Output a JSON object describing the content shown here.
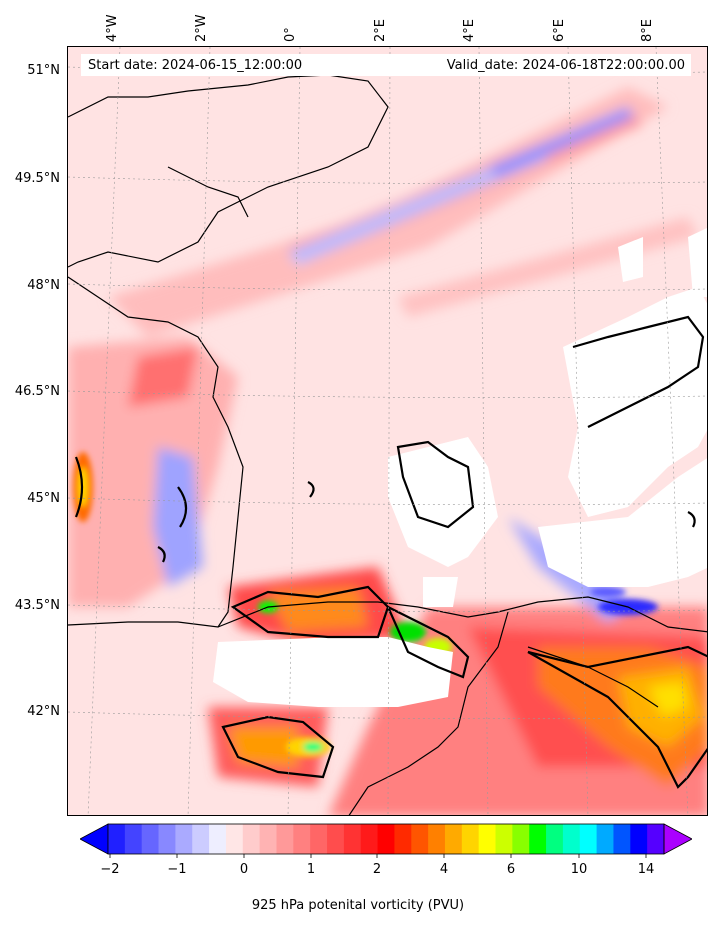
{
  "header": {
    "start_date": "Start date: 2024-06-15_12:00:00",
    "valid_date": "Valid_date: 2024-06-18T22:00:00.00"
  },
  "axes": {
    "lon_labels": [
      {
        "text": "4°W",
        "value": -4
      },
      {
        "text": "2°W",
        "value": -2
      },
      {
        "text": "0°",
        "value": 0
      },
      {
        "text": "2°E",
        "value": 2
      },
      {
        "text": "4°E",
        "value": 4
      },
      {
        "text": "6°E",
        "value": 6
      },
      {
        "text": "8°E",
        "value": 8
      }
    ],
    "lat_labels": [
      {
        "text": "51°N",
        "value": 51
      },
      {
        "text": "49.5°N",
        "value": 49.5
      },
      {
        "text": "48°N",
        "value": 48
      },
      {
        "text": "46.5°N",
        "value": 46.5
      },
      {
        "text": "45°N",
        "value": 45
      },
      {
        "text": "43.5°N",
        "value": 43.5
      },
      {
        "text": "42°N",
        "value": 42
      }
    ]
  },
  "colorbar": {
    "label": "925 hPa potenital vorticity (PVU)",
    "ticks": [
      {
        "text": "−2",
        "value": -2
      },
      {
        "text": "−1",
        "value": -1
      },
      {
        "text": "0",
        "value": 0
      },
      {
        "text": "1",
        "value": 1
      },
      {
        "text": "2",
        "value": 2
      },
      {
        "text": "4",
        "value": 4
      },
      {
        "text": "6",
        "value": 6
      },
      {
        "text": "10",
        "value": 10
      },
      {
        "text": "14",
        "value": 14
      }
    ],
    "colors": [
      "#0000ff",
      "#2020ff",
      "#4444ff",
      "#6666ff",
      "#8888ff",
      "#aaaaff",
      "#ccccff",
      "#eeeeff",
      "#ffe6e6",
      "#ffcccc",
      "#ffb3b3",
      "#ff9999",
      "#ff8080",
      "#ff6666",
      "#ff4d4d",
      "#ff3333",
      "#ff1a1a",
      "#ff0000",
      "#ff2a00",
      "#ff5500",
      "#ff8000",
      "#ffaa00",
      "#ffd400",
      "#ffff00",
      "#ccff00",
      "#88ff00",
      "#00ff00",
      "#00ff80",
      "#00ffcc",
      "#00ffff",
      "#00aaff",
      "#0055ff",
      "#0000ff",
      "#5500ff",
      "#aa00ff"
    ]
  }
}
